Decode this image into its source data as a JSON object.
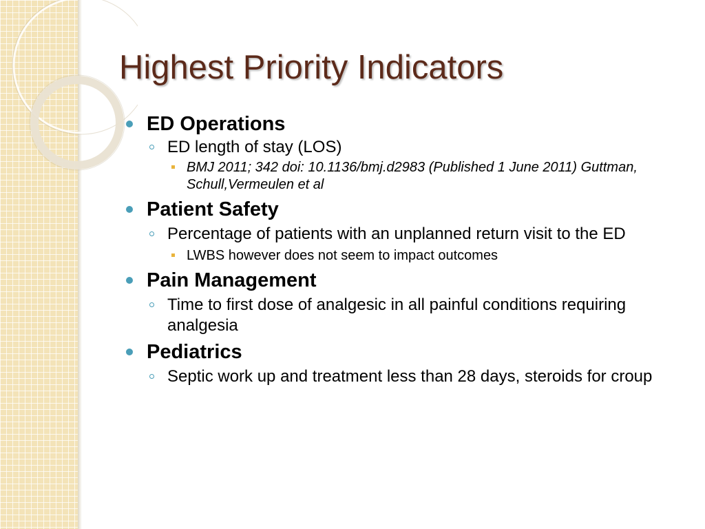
{
  "slide": {
    "title": "Highest Priority Indicators",
    "sections": [
      {
        "heading": "ED Operations",
        "items": [
          {
            "text": "ED length of stay (LOS)",
            "subitems": [
              "BMJ 2011; 342 doi: 10.1136/bmj.d2983 (Published 1 June 2011) Guttman, Schull,Vermeulen et al"
            ]
          }
        ]
      },
      {
        "heading": "Patient Safety",
        "items": [
          {
            "text": "Percentage of patients with an unplanned return visit to the ED",
            "subitems": [
              "LWBS however does not seem to impact outcomes"
            ]
          }
        ]
      },
      {
        "heading": "Pain Management",
        "items": [
          {
            "text": "Time to first dose of analgesic in all painful conditions requiring analgesia"
          }
        ]
      },
      {
        "heading": "Pediatrics",
        "items": [
          {
            "text": "Septic work up and treatment less than 28 days, steroids for croup"
          }
        ]
      }
    ]
  },
  "theme": {
    "title_color": "#5c2a1a",
    "bullet_primary": "#4a9eb8",
    "bullet_tertiary": "#e9b43c",
    "strip_color": "#f3e3b8"
  }
}
